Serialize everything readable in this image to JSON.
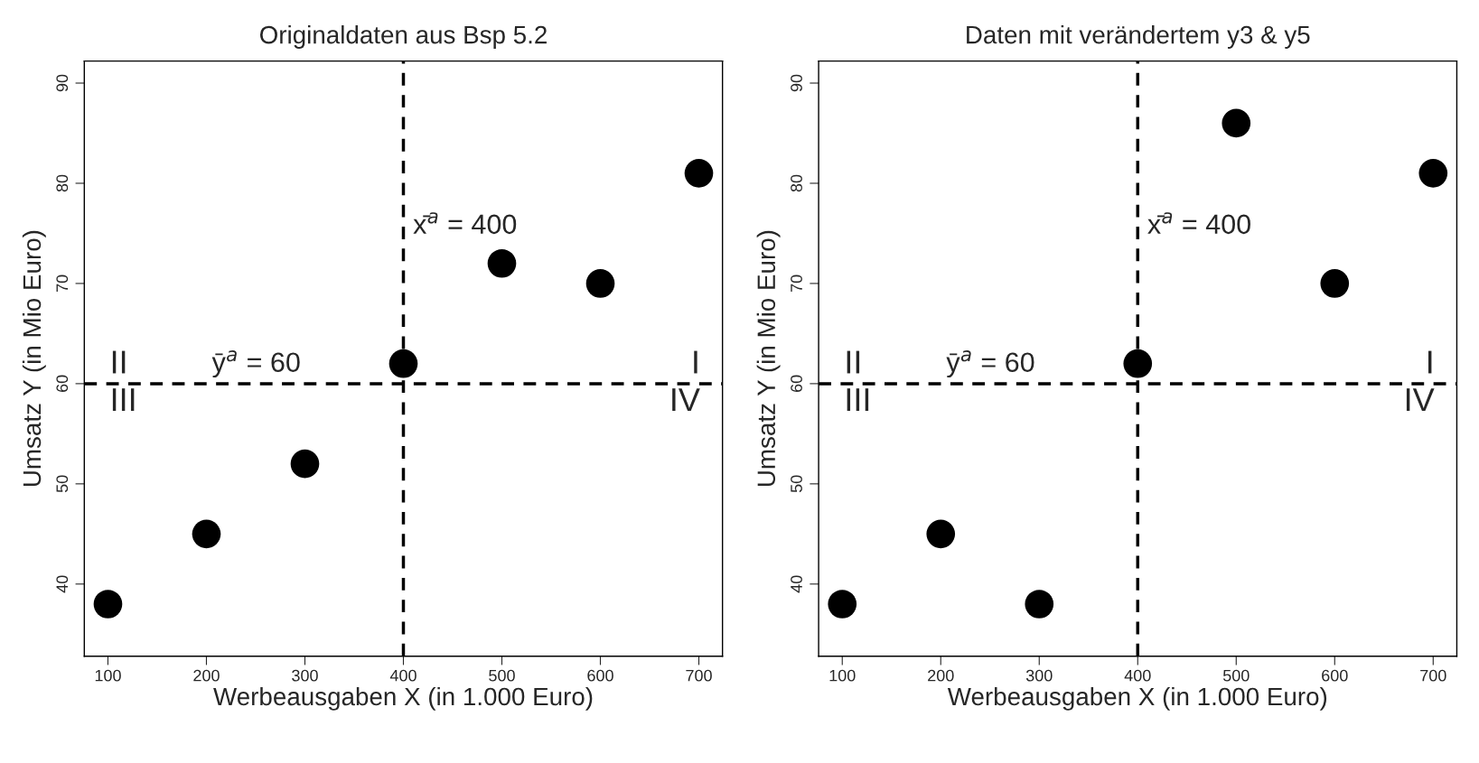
{
  "chart_data": [
    {
      "type": "scatter",
      "title": "Originaldaten aus Bsp 5.2",
      "xlabel": "Werbeausgaben X (in 1.000 Euro)",
      "ylabel": "Umsatz Y (in Mio Euro)",
      "x": [
        100,
        200,
        300,
        400,
        500,
        600,
        700
      ],
      "series": [
        {
          "color": "#000000",
          "values": [
            38,
            45,
            52,
            62,
            72,
            70,
            81
          ]
        }
      ],
      "marker": "circle",
      "xlim": [
        76,
        724
      ],
      "ylim": [
        32.8,
        92.2
      ],
      "xticks": [
        100,
        200,
        300,
        400,
        500,
        600,
        700
      ],
      "yticks": [
        40,
        50,
        60,
        70,
        80,
        90
      ],
      "grid": false,
      "legend": false,
      "ref_lines": [
        {
          "axis": "x",
          "value": 400,
          "label": "x̄$^{a}$ = 400",
          "color": "#000000",
          "line_style": "dashed"
        },
        {
          "axis": "y",
          "value": 60,
          "label": "ȳ$^{a}$ = 60",
          "color": "#000000",
          "line_style": "dashed"
        }
      ],
      "annotations": [
        "II",
        "III",
        "I",
        "IV"
      ]
    },
    {
      "type": "scatter",
      "title": "Daten mit verändertem y3 & y5",
      "xlabel": "Werbeausgaben X (in 1.000 Euro)",
      "ylabel": "Umsatz Y (in Mio Euro)",
      "x": [
        100,
        200,
        300,
        400,
        500,
        600,
        700
      ],
      "series": [
        {
          "color": "#000000",
          "values": [
            38,
            45,
            38,
            62,
            86,
            70,
            81
          ]
        }
      ],
      "marker": "circle",
      "xlim": [
        76,
        724
      ],
      "ylim": [
        32.8,
        92.2
      ],
      "xticks": [
        100,
        200,
        300,
        400,
        500,
        600,
        700
      ],
      "yticks": [
        40,
        50,
        60,
        70,
        80,
        90
      ],
      "grid": false,
      "legend": false,
      "ref_lines": [
        {
          "axis": "x",
          "value": 400,
          "label": "x̄$^{a}$ = 400",
          "color": "#000000",
          "line_style": "dashed"
        },
        {
          "axis": "y",
          "value": 60,
          "label": "ȳ$^{a}$ = 60",
          "color": "#000000",
          "line_style": "dashed"
        }
      ],
      "annotations": [
        "II",
        "III",
        "I",
        "IV"
      ]
    }
  ]
}
